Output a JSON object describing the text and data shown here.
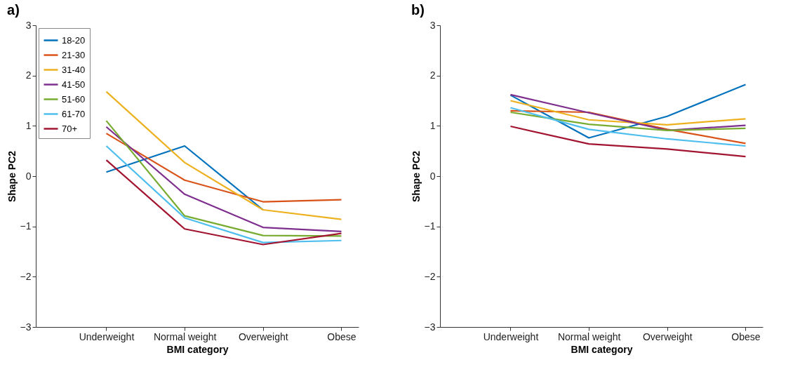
{
  "chart_data": [
    {
      "type": "line",
      "title": "a)",
      "xlabel": "BMI category",
      "ylabel": "Shape PC2",
      "categories": [
        "Underweight",
        "Normal weight",
        "Overweight",
        "Obese"
      ],
      "ylim": [
        -3,
        3
      ],
      "yticks": [
        -3,
        -2,
        -1,
        0,
        1,
        2,
        3
      ],
      "legend": "top left",
      "grid": false,
      "marker": "none",
      "line_style": "solid",
      "series": [
        {
          "name": "18-20",
          "color": "#0072bd",
          "values": [
            0.08,
            0.6,
            -0.67,
            null
          ]
        },
        {
          "name": "21-30",
          "color": "#d95319",
          "values": [
            0.85,
            -0.08,
            -0.51,
            -0.47
          ]
        },
        {
          "name": "31-40",
          "color": "#edb120",
          "values": [
            1.68,
            0.27,
            -0.67,
            -0.86
          ]
        },
        {
          "name": "41-50",
          "color": "#7e2f8e",
          "values": [
            0.98,
            -0.36,
            -1.02,
            -1.1
          ]
        },
        {
          "name": "51-60",
          "color": "#77ac30",
          "values": [
            1.1,
            -0.79,
            -1.18,
            -1.19
          ]
        },
        {
          "name": "61-70",
          "color": "#4dbeee",
          "values": [
            0.6,
            -0.83,
            -1.32,
            -1.28
          ]
        },
        {
          "name": "70+",
          "color": "#a2142f",
          "values": [
            0.32,
            -1.05,
            -1.36,
            -1.14
          ]
        }
      ]
    },
    {
      "type": "line",
      "title": "b)",
      "xlabel": "BMI category",
      "ylabel": "Shape PC2",
      "categories": [
        "Underweight",
        "Normal weight",
        "Overweight",
        "Obese"
      ],
      "ylim": [
        -3,
        3
      ],
      "yticks": [
        -3,
        -2,
        -1,
        0,
        1,
        2,
        3
      ],
      "legend": "top left",
      "grid": false,
      "marker": "none",
      "line_style": "solid",
      "series": [
        {
          "name": "18-20",
          "color": "#0072bd",
          "values": [
            1.61,
            0.76,
            1.19,
            1.82
          ]
        },
        {
          "name": "21-30",
          "color": "#d95319",
          "values": [
            1.3,
            1.27,
            0.93,
            0.65
          ]
        },
        {
          "name": "31-40",
          "color": "#edb120",
          "values": [
            1.5,
            1.12,
            1.02,
            1.14
          ]
        },
        {
          "name": "41-50",
          "color": "#7e2f8e",
          "values": [
            1.62,
            1.26,
            0.91,
            1.01
          ]
        },
        {
          "name": "51-60",
          "color": "#77ac30",
          "values": [
            1.27,
            1.03,
            0.91,
            0.95
          ]
        },
        {
          "name": "61-70",
          "color": "#4dbeee",
          "values": [
            1.36,
            0.93,
            0.74,
            0.6
          ]
        },
        {
          "name": "70+",
          "color": "#a2142f",
          "values": [
            0.99,
            0.64,
            0.54,
            0.39
          ]
        }
      ]
    }
  ]
}
